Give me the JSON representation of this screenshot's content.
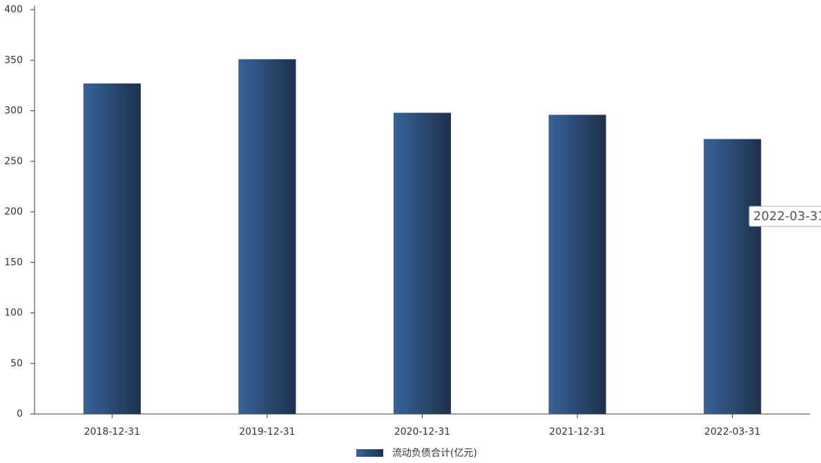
{
  "chart_data": {
    "type": "bar",
    "categories": [
      "2018-12-31",
      "2019-12-31",
      "2020-12-31",
      "2021-12-31",
      "2022-03-31"
    ],
    "series": [
      {
        "name": "流动负债合计(亿元)",
        "color": "#2a4a72",
        "values": [
          327,
          351,
          298,
          296,
          272
        ]
      }
    ],
    "ylim": [
      0,
      400
    ],
    "yticks": [
      0,
      50,
      100,
      150,
      200,
      250,
      300,
      350,
      400
    ],
    "grid": false
  }
}
